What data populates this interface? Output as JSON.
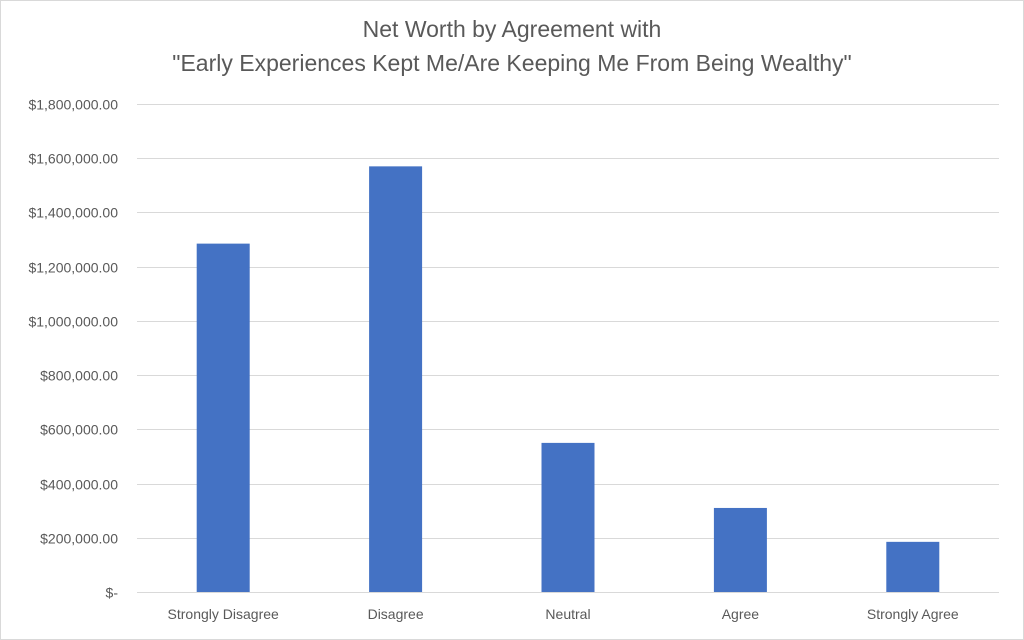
{
  "chart_data": {
    "type": "bar",
    "title_lines": [
      "Net Worth by Agreement with",
      "\"Early Experiences Kept Me/Are Keeping Me From Being Wealthy\""
    ],
    "categories": [
      "Strongly Disagree",
      "Disagree",
      "Neutral",
      "Agree",
      "Strongly Agree"
    ],
    "values": [
      1285000,
      1570000,
      550000,
      310000,
      185000
    ],
    "ylim": [
      0,
      1800000
    ],
    "yticks": [
      0,
      200000,
      400000,
      600000,
      800000,
      1000000,
      1200000,
      1400000,
      1600000,
      1800000
    ],
    "ytick_labels": [
      "$-",
      "$200,000.00",
      "$400,000.00",
      "$600,000.00",
      "$800,000.00",
      "$1,000,000.00",
      "$1,200,000.00",
      "$1,400,000.00",
      "$1,600,000.00",
      "$1,800,000.00"
    ],
    "xlabel": "",
    "ylabel": "",
    "grid": true,
    "legend": "none",
    "bar_color": "#4472C4",
    "grid_color": "#d9d9d9"
  }
}
